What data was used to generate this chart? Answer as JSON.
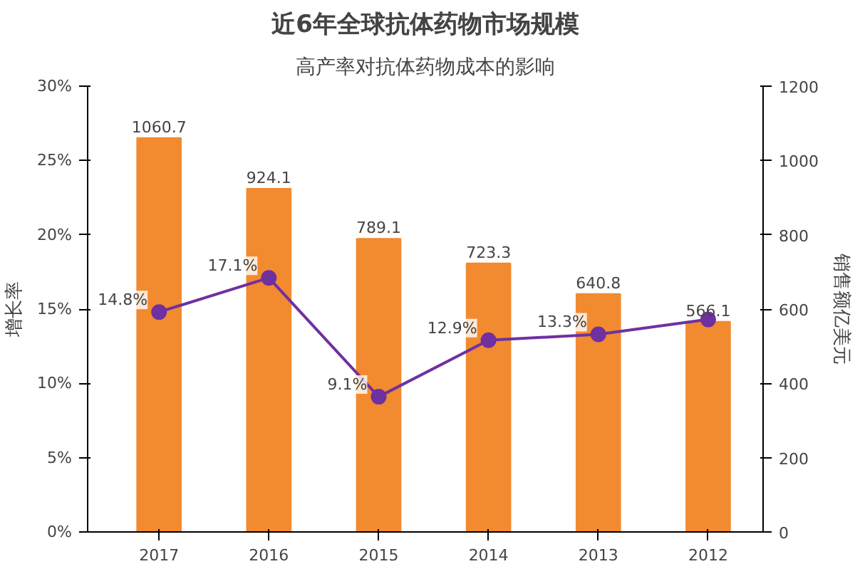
{
  "chart_data": {
    "type": "bar",
    "title": "近6年全球抗体药物市场规模",
    "categories": [
      "2017",
      "2016",
      "2015",
      "2014",
      "2013",
      "2012"
    ],
    "ylabel": "增长率",
    "y2label": "销售额亿美元",
    "annotations": [
      "高产率对抗体药物成本的影响"
    ],
    "series": [
      {
        "axis": "y2",
        "color": "#f28a30",
        "values": [
          1060.7,
          924.1,
          789.1,
          723.3,
          640.8,
          566.1
        ],
        "value_labels": [
          "1060.7",
          "924.1",
          "789.1",
          "723.3",
          "640.8",
          "566.1"
        ]
      },
      {
        "type": "line",
        "axis": "y",
        "color": "#7030a0",
        "marker": "circle",
        "values": [
          14.8,
          17.1,
          9.1,
          12.9,
          13.3,
          14.3
        ],
        "value_labels": [
          "14.8%",
          "17.1%",
          "9.1%",
          "12.9%",
          "13.3%",
          null
        ]
      }
    ],
    "ylim": [
      0,
      30
    ],
    "yticks": [
      {
        "value": 0,
        "label": "0%"
      },
      {
        "value": 5,
        "label": "5%"
      },
      {
        "value": 10,
        "label": "10%"
      },
      {
        "value": 15,
        "label": "15%"
      },
      {
        "value": 20,
        "label": "20%"
      },
      {
        "value": 25,
        "label": "25%"
      },
      {
        "value": 30,
        "label": "30%"
      }
    ],
    "y2lim": [
      0,
      1200
    ],
    "y2ticks": [
      0,
      200,
      400,
      600,
      800,
      1000,
      1200
    ],
    "grid": false
  }
}
